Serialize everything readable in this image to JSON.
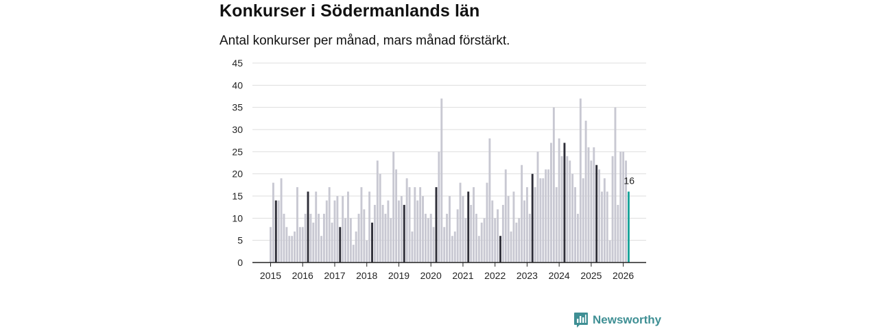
{
  "header": {
    "title": "Konkurser i Södermanlands län",
    "subtitle": "Antal konkurser per månad, mars månad förstärkt."
  },
  "brand": {
    "name": "Newsworthy",
    "icon": "bar-chart-icon",
    "color": "#3f8f94"
  },
  "colors": {
    "bar": "#c8c8d2",
    "highlight": "#2e2e38",
    "latest": "#1aa39a",
    "grid": "#dddddd",
    "axis": "#222222"
  },
  "chart_data": {
    "type": "bar",
    "title": "Konkurser i Södermanlands län",
    "subtitle": "Antal konkurser per månad, mars månad förstärkt.",
    "xlabel": "",
    "ylabel": "",
    "ylim": [
      0,
      45
    ],
    "yticks": [
      0,
      5,
      10,
      15,
      20,
      25,
      30,
      35,
      40,
      45
    ],
    "grid": true,
    "start": "2015-01",
    "highlight_month": "mars",
    "year_labels": [
      "2015",
      "2016",
      "2017",
      "2018",
      "2019",
      "2020",
      "2021",
      "2022",
      "2023",
      "2024",
      "2025",
      "2026"
    ],
    "values": [
      8,
      18,
      14,
      14,
      19,
      11,
      8,
      6,
      6,
      7,
      17,
      8,
      8,
      11,
      16,
      11,
      9,
      16,
      11,
      6,
      11,
      14,
      17,
      9,
      14,
      15,
      8,
      15,
      10,
      16,
      10,
      4,
      7,
      11,
      17,
      12,
      5,
      16,
      9,
      13,
      23,
      20,
      13,
      11,
      14,
      10,
      25,
      21,
      14,
      15,
      13,
      19,
      17,
      7,
      17,
      14,
      17,
      15,
      11,
      10,
      11,
      8,
      17,
      25,
      37,
      8,
      11,
      15,
      6,
      7,
      12,
      18,
      15,
      10,
      16,
      13,
      17,
      11,
      6,
      9,
      10,
      18,
      28,
      14,
      10,
      12,
      6,
      13,
      21,
      15,
      7,
      16,
      9,
      10,
      22,
      14,
      17,
      11,
      20,
      17,
      25,
      19,
      19,
      21,
      21,
      27,
      35,
      17,
      28,
      24,
      27,
      24,
      23,
      20,
      17,
      11,
      37,
      19,
      32,
      26,
      23,
      26,
      22,
      21,
      16,
      19,
      16,
      5,
      24,
      35,
      13,
      25,
      25,
      23,
      16
    ],
    "latest_label": "16"
  }
}
